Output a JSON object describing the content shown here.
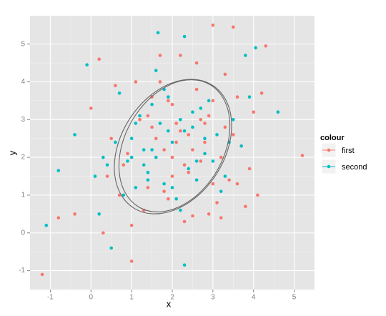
{
  "chart_data": {
    "type": "scatter",
    "x_label": "x",
    "y_label": "y",
    "legend_title": "colour",
    "legend_position": "right",
    "grid": true,
    "xlim": [
      -1.5,
      5.5
    ],
    "xticks": [
      -1,
      0,
      1,
      2,
      3,
      4,
      5
    ],
    "ylim": [
      -1.5,
      5.75
    ],
    "yticks": [
      -1,
      0,
      1,
      2,
      3,
      4,
      5
    ],
    "series": [
      {
        "name": "first",
        "color": "#F8766D",
        "x": [
          -1.2,
          5.2,
          3.0,
          3.5,
          4.3,
          0.2,
          -0.8,
          -0.4,
          0.0,
          0.5,
          0.8,
          1.0,
          1.2,
          1.4,
          1.5,
          1.7,
          1.8,
          1.9,
          2.0,
          2.1,
          2.2,
          2.3,
          2.4,
          2.5,
          2.6,
          2.7,
          2.8,
          2.9,
          3.1,
          3.2,
          3.3,
          3.4,
          3.6,
          3.7,
          3.8,
          4.0,
          4.1,
          4.2,
          0.3,
          0.6,
          0.9,
          1.1,
          1.3,
          1.6,
          1.8,
          2.0,
          2.2,
          2.4,
          2.6,
          2.8,
          3.0,
          3.2,
          3.5,
          3.9,
          1.0,
          1.5,
          2.5,
          3.0,
          0.4,
          1.9,
          2.1,
          2.7,
          1.4,
          2.3,
          3.3,
          0.7,
          1.7,
          2.9,
          3.6,
          2.0
        ],
        "values": [
          -1.1,
          2.05,
          5.5,
          5.45,
          4.95,
          4.6,
          0.4,
          0.5,
          3.3,
          2.5,
          1.8,
          -0.75,
          3.0,
          1.2,
          2.8,
          4.0,
          2.2,
          3.5,
          1.5,
          2.9,
          4.7,
          0.3,
          2.6,
          0.45,
          3.8,
          1.9,
          2.4,
          3.1,
          0.8,
          2.0,
          4.2,
          1.4,
          3.6,
          2.3,
          0.7,
          3.2,
          1.0,
          3.7,
          0.0,
          3.9,
          2.1,
          4.0,
          0.6,
          2.5,
          1.1,
          3.4,
          2.7,
          1.6,
          4.5,
          2.9,
          3.5,
          0.4,
          2.6,
          1.7,
          0.2,
          3.6,
          2.2,
          1.3,
          1.5,
          0.9,
          2.4,
          3.0,
          3.1,
          1.8,
          2.8,
          1.0,
          4.7,
          0.5,
          1.3,
          2.0
        ]
      },
      {
        "name": "second",
        "color": "#00BFC4",
        "x": [
          -1.1,
          1.65,
          2.3,
          -0.8,
          -0.1,
          4.6,
          2.3,
          4.05,
          -0.4,
          0.1,
          0.3,
          0.5,
          0.7,
          0.9,
          1.0,
          1.1,
          1.2,
          1.3,
          1.4,
          1.5,
          1.6,
          1.7,
          1.8,
          1.9,
          2.0,
          2.1,
          2.2,
          2.4,
          2.5,
          2.6,
          2.7,
          2.8,
          3.0,
          3.1,
          3.3,
          3.5,
          3.7,
          3.9,
          0.2,
          0.6,
          0.8,
          1.1,
          1.3,
          1.5,
          1.8,
          2.0,
          2.3,
          2.6,
          2.9,
          3.2,
          3.4,
          1.0,
          1.4,
          1.9,
          2.2,
          2.5,
          0.4,
          3.8,
          1.6,
          2.8
        ],
        "values": [
          0.2,
          5.3,
          5.2,
          1.65,
          4.45,
          3.2,
          -0.85,
          4.9,
          2.6,
          1.5,
          2.0,
          -0.4,
          3.7,
          1.9,
          2.5,
          1.2,
          3.1,
          2.2,
          1.6,
          3.4,
          2.0,
          2.9,
          1.3,
          3.6,
          2.4,
          0.9,
          3.0,
          1.7,
          2.8,
          1.4,
          3.3,
          2.1,
          1.9,
          2.6,
          1.5,
          3.0,
          2.3,
          3.6,
          0.5,
          2.4,
          1.0,
          2.9,
          1.8,
          2.2,
          3.8,
          1.2,
          2.7,
          1.9,
          3.5,
          1.1,
          2.4,
          2.0,
          1.4,
          2.7,
          0.6,
          3.2,
          1.8,
          4.7,
          4.3,
          2.5
        ]
      }
    ]
  }
}
